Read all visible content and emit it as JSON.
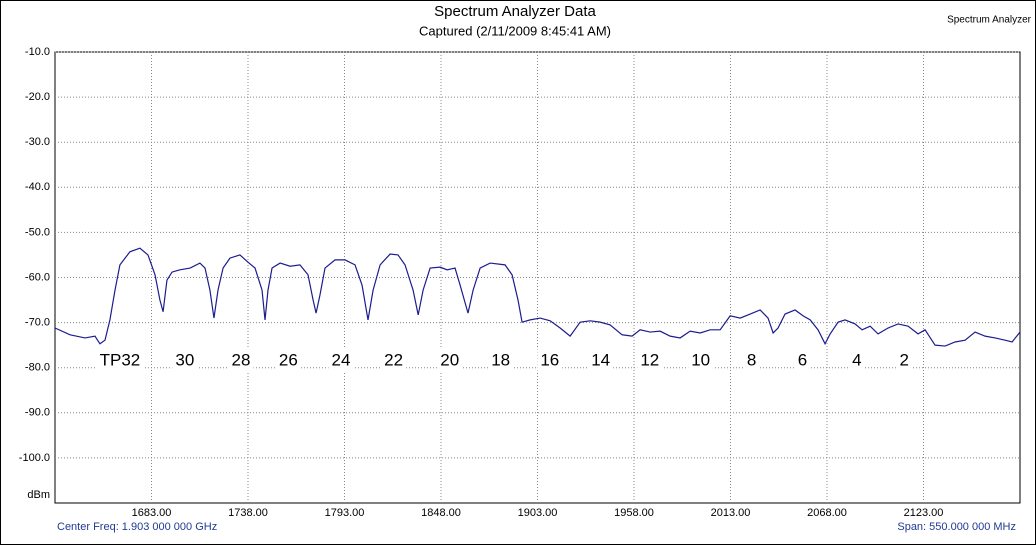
{
  "chart_data": {
    "type": "line",
    "title": "Spectrum Analyzer Data",
    "subtitle": "Captured (2/11/2009 8:45:41 AM)",
    "corner_label": "Spectrum Analyzer",
    "ylabel": "dBm",
    "center_text": "Center Freq: 1.903 000 000 GHz",
    "span_text": "Span: 550.000 000 MHz",
    "color": "#1c1c8f",
    "grid": true,
    "xlim": [
      1628,
      2178
    ],
    "ylim": [
      -110,
      -10
    ],
    "xticks": [
      {
        "value": 1683,
        "label": "1683.00"
      },
      {
        "value": 1738,
        "label": "1738.00"
      },
      {
        "value": 1793,
        "label": "1793.00"
      },
      {
        "value": 1848,
        "label": "1848.00"
      },
      {
        "value": 1903,
        "label": "1903.00"
      },
      {
        "value": 1958,
        "label": "1958.00"
      },
      {
        "value": 2013,
        "label": "2013.00"
      },
      {
        "value": 2068,
        "label": "2068.00"
      },
      {
        "value": 2123,
        "label": "2123.00"
      }
    ],
    "yticks": [
      {
        "value": -10,
        "label": "-10.0"
      },
      {
        "value": -20,
        "label": "-20.0"
      },
      {
        "value": -30,
        "label": "-30.0"
      },
      {
        "value": -40,
        "label": "-40.0"
      },
      {
        "value": -50,
        "label": "-50.0"
      },
      {
        "value": -60,
        "label": "-60.0"
      },
      {
        "value": -70,
        "label": "-70.0"
      },
      {
        "value": -80,
        "label": "-80.0"
      },
      {
        "value": -90,
        "label": "-90.0"
      },
      {
        "value": -100,
        "label": "-100.0"
      }
    ],
    "x": [
      1628,
      1636.6,
      1645.1,
      1650.8,
      1653.6,
      1656.5,
      1659.3,
      1662.2,
      1665,
      1670.7,
      1676.4,
      1681,
      1685,
      1687.8,
      1689.6,
      1691.8,
      1694.7,
      1699.2,
      1705,
      1710.6,
      1713.5,
      1716.3,
      1718.6,
      1720.9,
      1723.8,
      1727.7,
      1733.4,
      1738,
      1742,
      1746,
      1747.7,
      1749.4,
      1751.7,
      1756.3,
      1762,
      1767.6,
      1772.2,
      1775.1,
      1776.8,
      1779,
      1781.9,
      1787.6,
      1793.3,
      1799,
      1803,
      1806.4,
      1809.3,
      1813.3,
      1819,
      1823.5,
      1827.5,
      1832.1,
      1835,
      1837.8,
      1841.8,
      1847.5,
      1851.5,
      1856,
      1858.9,
      1863.4,
      1866.3,
      1870.3,
      1876,
      1884.5,
      1888.5,
      1891.9,
      1894.2,
      1898.8,
      1904.5,
      1910.2,
      1915.9,
      1921.6,
      1927.3,
      1933,
      1938.7,
      1944.4,
      1951.2,
      1956.9,
      1961.5,
      1967.2,
      1972.9,
      1978.6,
      1984.3,
      1990,
      1995.7,
      2001.4,
      2007.1,
      2012.8,
      2018.5,
      2024.2,
      2029.9,
      2034.4,
      2037.3,
      2040.1,
      2044.1,
      2049.8,
      2054.4,
      2058.4,
      2062.9,
      2066.9,
      2069.8,
      2074.3,
      2078.3,
      2084,
      2088,
      2092.6,
      2097.1,
      2102.8,
      2108.5,
      2114.2,
      2119.9,
      2123.9,
      2129.6,
      2135.3,
      2141,
      2146.7,
      2152.4,
      2158.1,
      2163.8,
      2169.5,
      2173.5,
      2178
    ],
    "values": [
      -71.2,
      -72.7,
      -73.4,
      -73,
      -74.7,
      -73.9,
      -69.4,
      -62.8,
      -57.2,
      -54.3,
      -53.5,
      -55,
      -59.4,
      -65,
      -67.6,
      -60.6,
      -58.8,
      -58.3,
      -57.9,
      -56.8,
      -57.9,
      -62.8,
      -69,
      -62.8,
      -57.9,
      -55.7,
      -55,
      -56.6,
      -57.9,
      -62.8,
      -69.4,
      -62.8,
      -57.9,
      -56.8,
      -57.5,
      -57.2,
      -59.4,
      -65,
      -67.9,
      -63.9,
      -57.9,
      -56.1,
      -56.1,
      -57.2,
      -61.7,
      -69.4,
      -62.8,
      -57.2,
      -54.8,
      -55,
      -57.2,
      -62.8,
      -68.3,
      -62.8,
      -57.9,
      -57.7,
      -58.3,
      -57.9,
      -61.7,
      -67.9,
      -62.8,
      -57.9,
      -56.8,
      -57.2,
      -59.4,
      -65,
      -69.9,
      -69.4,
      -69,
      -69.6,
      -71.2,
      -73,
      -69.9,
      -69.6,
      -69.9,
      -70.5,
      -72.7,
      -73,
      -71.6,
      -72.1,
      -71.9,
      -73,
      -73.4,
      -71.9,
      -72.3,
      -71.6,
      -71.6,
      -68.5,
      -69,
      -68.1,
      -67.2,
      -69,
      -72.3,
      -71.2,
      -68.1,
      -67.2,
      -68.5,
      -69.4,
      -71.6,
      -74.7,
      -72.5,
      -69.9,
      -69.4,
      -70.3,
      -71.6,
      -70.8,
      -72.5,
      -71.2,
      -70.3,
      -70.8,
      -72.5,
      -71.6,
      -75,
      -75.2,
      -74.3,
      -73.9,
      -72.1,
      -73,
      -73.4,
      -73.9,
      -74.3,
      -72.1
    ],
    "annotations": [
      {
        "text": "TP32",
        "x": 1665
      },
      {
        "text": "30",
        "x": 1702
      },
      {
        "text": "28",
        "x": 1734
      },
      {
        "text": "26",
        "x": 1761
      },
      {
        "text": "24",
        "x": 1791
      },
      {
        "text": "22",
        "x": 1821
      },
      {
        "text": "20",
        "x": 1853
      },
      {
        "text": "18",
        "x": 1882
      },
      {
        "text": "16",
        "x": 1910
      },
      {
        "text": "14",
        "x": 1939
      },
      {
        "text": "12",
        "x": 1967
      },
      {
        "text": "10",
        "x": 1996
      },
      {
        "text": "8",
        "x": 2025
      },
      {
        "text": "6",
        "x": 2054
      },
      {
        "text": "4",
        "x": 2085
      },
      {
        "text": "2",
        "x": 2112
      }
    ]
  }
}
